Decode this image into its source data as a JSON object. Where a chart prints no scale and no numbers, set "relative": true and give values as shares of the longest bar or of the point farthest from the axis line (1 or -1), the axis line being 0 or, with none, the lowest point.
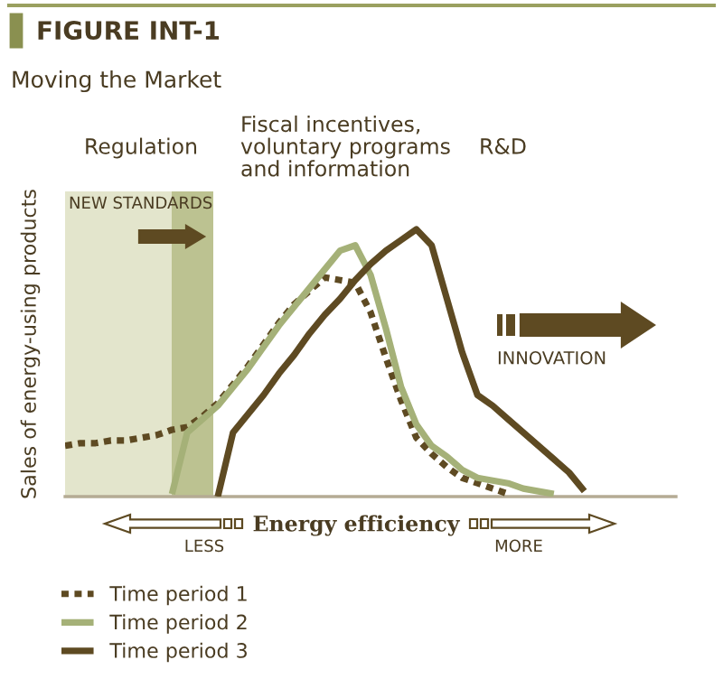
{
  "chart_data": {
    "type": "line",
    "title": "FIGURE INT-1",
    "subtitle": "Moving the Market",
    "xlabel": "Energy efficiency",
    "ylabel": "Sales of energy-using products",
    "relative": true,
    "legend": "bottom left",
    "marker": "none",
    "categories": [
      null,
      null,
      null,
      null,
      null,
      null,
      null,
      null,
      null,
      null,
      null,
      null,
      null,
      null,
      null,
      null,
      null,
      null,
      null,
      null,
      null,
      null,
      null,
      null,
      null,
      null,
      null,
      null,
      null,
      null,
      null,
      null,
      null,
      null,
      null,
      null,
      null,
      null,
      null,
      null,
      null
    ],
    "series": [
      {
        "name": "Time period 1",
        "color": "#5e4a22",
        "line_style": "dashed",
        "values": [
          0.19,
          0.2,
          0.2,
          0.21,
          0.21,
          0.22,
          0.23,
          0.25,
          0.26,
          0.3,
          0.35,
          0.42,
          0.49,
          0.57,
          0.65,
          0.72,
          0.77,
          0.82,
          0.81,
          0.8,
          0.69,
          0.52,
          0.36,
          0.22,
          0.16,
          0.11,
          0.07,
          0.05,
          0.03,
          0.01,
          null,
          null,
          null,
          null,
          null,
          null,
          null,
          null,
          null,
          null,
          null
        ]
      },
      {
        "name": "Time period 2",
        "color": "#a5b178",
        "line_style": "solid",
        "values": [
          null,
          null,
          null,
          null,
          null,
          null,
          null,
          0.01,
          0.24,
          0.29,
          0.34,
          0.41,
          0.48,
          0.56,
          0.64,
          0.71,
          0.78,
          0.85,
          0.92,
          0.94,
          0.83,
          0.63,
          0.41,
          0.27,
          0.19,
          0.15,
          0.1,
          0.07,
          0.06,
          0.05,
          0.03,
          0.02,
          0.01,
          null,
          null,
          null,
          null,
          null,
          null,
          null,
          null
        ]
      },
      {
        "name": "Time period 3",
        "color": "#5e4a22",
        "line_style": "solid",
        "values": [
          null,
          null,
          null,
          null,
          null,
          null,
          null,
          null,
          null,
          null,
          0,
          0.24,
          0.31,
          0.38,
          0.46,
          0.53,
          0.61,
          0.68,
          0.74,
          0.81,
          0.87,
          0.92,
          0.96,
          1,
          0.94,
          0.74,
          0.54,
          0.38,
          0.34,
          0.29,
          0.24,
          0.19,
          0.14,
          0.09,
          0.02,
          null,
          null,
          null,
          null,
          null,
          null
        ]
      }
    ],
    "annotations": [
      "Regulation",
      "Fiscal incentives,\nvoluntary programs\nand information",
      "R&D",
      "NEW STANDARDS",
      "INNOVATION",
      "LESS",
      "MORE"
    ]
  }
}
